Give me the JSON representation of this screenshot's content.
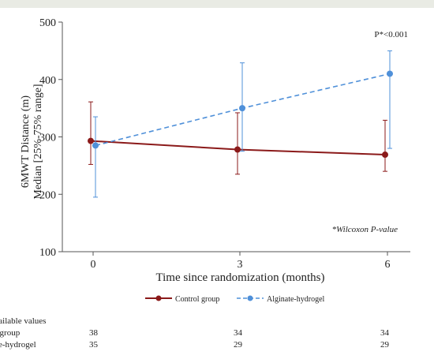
{
  "chart_data": {
    "type": "line",
    "xlabel": "Time since randomization (months)",
    "ylabel_lines": [
      "6MWT Distance (m)",
      "Median [25%-75% range]"
    ],
    "x": [
      0,
      3,
      6
    ],
    "ylim": [
      100,
      500
    ],
    "yticks": [
      100,
      200,
      300,
      400,
      500
    ],
    "xticks": [
      0,
      3,
      6
    ],
    "grid": false,
    "legend_position": "bottom",
    "annotation_top": "P*<0.001",
    "annotation_note": "*Wilcoxon P-value",
    "series": [
      {
        "name": "Control group",
        "color": "#8b1a1a",
        "line_style": "solid",
        "marker": "circle",
        "values": [
          293,
          278,
          269
        ],
        "lower": [
          252,
          235,
          240
        ],
        "upper": [
          361,
          342,
          329
        ]
      },
      {
        "name": "Alginate-hydrogel",
        "color": "#4f90d9",
        "line_style": "dashed",
        "marker": "circle",
        "values": [
          285,
          350,
          410
        ],
        "lower": [
          195,
          275,
          280
        ],
        "upper": [
          335,
          429,
          450
        ]
      }
    ]
  },
  "table": {
    "header": "of available values",
    "rows": [
      {
        "label": "ntrol group",
        "values": [
          "38",
          "34",
          "34"
        ]
      },
      {
        "label": "ginate-hydrogel",
        "values": [
          "35",
          "29",
          "29"
        ]
      }
    ]
  }
}
